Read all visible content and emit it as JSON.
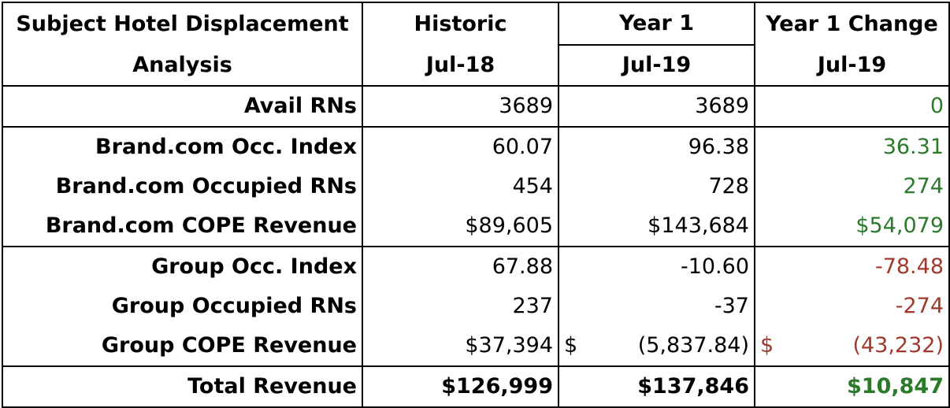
{
  "header": {
    "title_line1": "Subject Hotel Displacement",
    "title_line2": "Analysis",
    "col1": "Historic",
    "col2": "Year 1",
    "col3": "Year 1 Change",
    "col1_date": "Jul-18",
    "col2_date": "Jul-19",
    "col3_date": "Jul-19"
  },
  "rows": [
    {
      "label": "Avail RNs",
      "historic": "3689",
      "year1": "3689",
      "change": "0"
    },
    {
      "label": "Brand.com Occ. Index",
      "historic": "60.07",
      "year1": "96.38",
      "change": "36.31"
    },
    {
      "label": "Brand.com Occupied RNs",
      "historic": "454",
      "year1": "728",
      "change": "274"
    },
    {
      "label": "Brand.com COPE Revenue",
      "historic": "$89,605",
      "year1": "$143,684",
      "change": "$54,079"
    },
    {
      "label": "Group Occ. Index",
      "historic": "67.88",
      "year1": "-10.60",
      "change": "-78.48"
    },
    {
      "label": "Group Occupied RNs",
      "historic": "237",
      "year1": "-37",
      "change": "-274"
    },
    {
      "label": "Group COPE Revenue",
      "historic": "$37,394",
      "year1_sym": "$",
      "year1": "(5,837.84)",
      "change_sym": "$",
      "change": "(43,232)"
    },
    {
      "label": "Total Revenue",
      "historic": "$126,999",
      "year1": "$137,846",
      "change": "$10,847"
    }
  ],
  "colors": {
    "positive": "#2a7a2a",
    "negative": "#a0392b"
  }
}
